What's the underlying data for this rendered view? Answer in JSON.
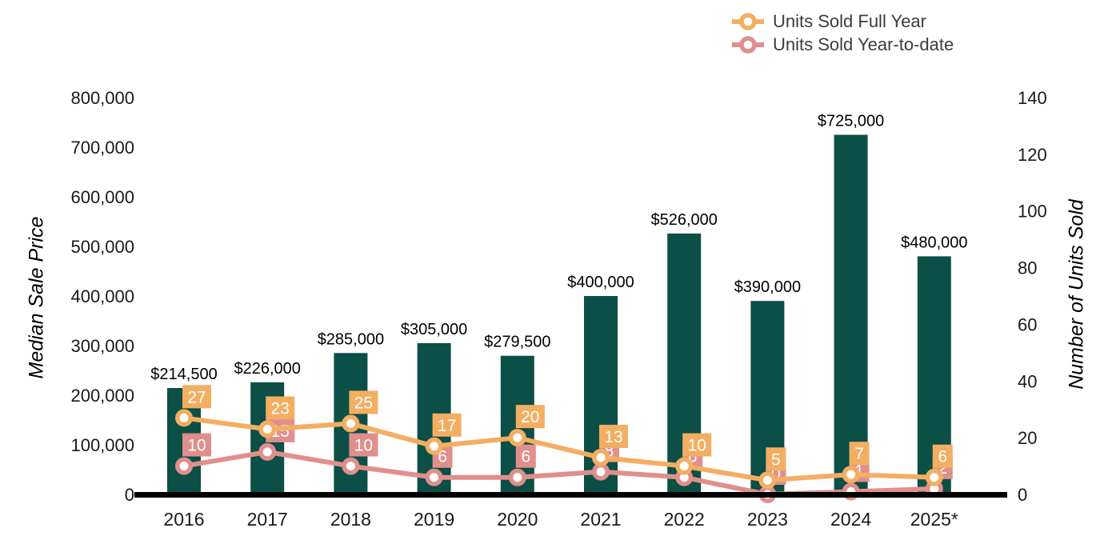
{
  "chart_data": {
    "type": "combo_bar_line",
    "categories": [
      "2016",
      "2017",
      "2018",
      "2019",
      "2020",
      "2021",
      "2022",
      "2023",
      "2024",
      "2025*"
    ],
    "bar_series": {
      "name": "Median Sale Price",
      "axis": "left",
      "color": "#0b4f47",
      "values": [
        214500,
        226000,
        285000,
        305000,
        279500,
        400000,
        526000,
        390000,
        725000,
        480000
      ],
      "labels": [
        "$214,500",
        "$226,000",
        "$285,000",
        "$305,000",
        "$279,500",
        "$400,000",
        "$526,000",
        "$390,000",
        "$725,000",
        "$480,000"
      ]
    },
    "line_series": [
      {
        "name": "Units Sold Year-to-date",
        "axis": "right",
        "color": "#e08f8c",
        "z": 1,
        "values": [
          10,
          15,
          10,
          6,
          6,
          8,
          6,
          0,
          1,
          2
        ]
      },
      {
        "name": "Units Sold Full Year",
        "axis": "right",
        "color": "#f3ae62",
        "z": 2,
        "values": [
          27,
          23,
          25,
          17,
          20,
          13,
          10,
          5,
          7,
          6
        ]
      }
    ],
    "left_axis": {
      "title": "Median Sale Price",
      "min": 0,
      "max": 800000,
      "tick_values": [
        0,
        100000,
        200000,
        300000,
        400000,
        500000,
        600000,
        700000,
        800000
      ],
      "tick_labels": [
        "0",
        "100,000",
        "200,000",
        "300,000",
        "400,000",
        "500,000",
        "600,000",
        "700,000",
        "800,000"
      ]
    },
    "right_axis": {
      "title": "Number of Units Sold",
      "min": 0,
      "max": 140,
      "tick_values": [
        0,
        20,
        40,
        60,
        80,
        100,
        120,
        140
      ],
      "tick_labels": [
        "0",
        "20",
        "40",
        "60",
        "80",
        "100",
        "120",
        "140"
      ]
    },
    "legend": {
      "position": "top-right",
      "items": [
        {
          "label": "Units Sold Full Year",
          "color": "#f3ae62"
        },
        {
          "label": "Units Sold Year-to-date",
          "color": "#e08f8c"
        }
      ]
    },
    "grid": "off",
    "background": "#ffffff",
    "axis_line_color": "#000000"
  }
}
